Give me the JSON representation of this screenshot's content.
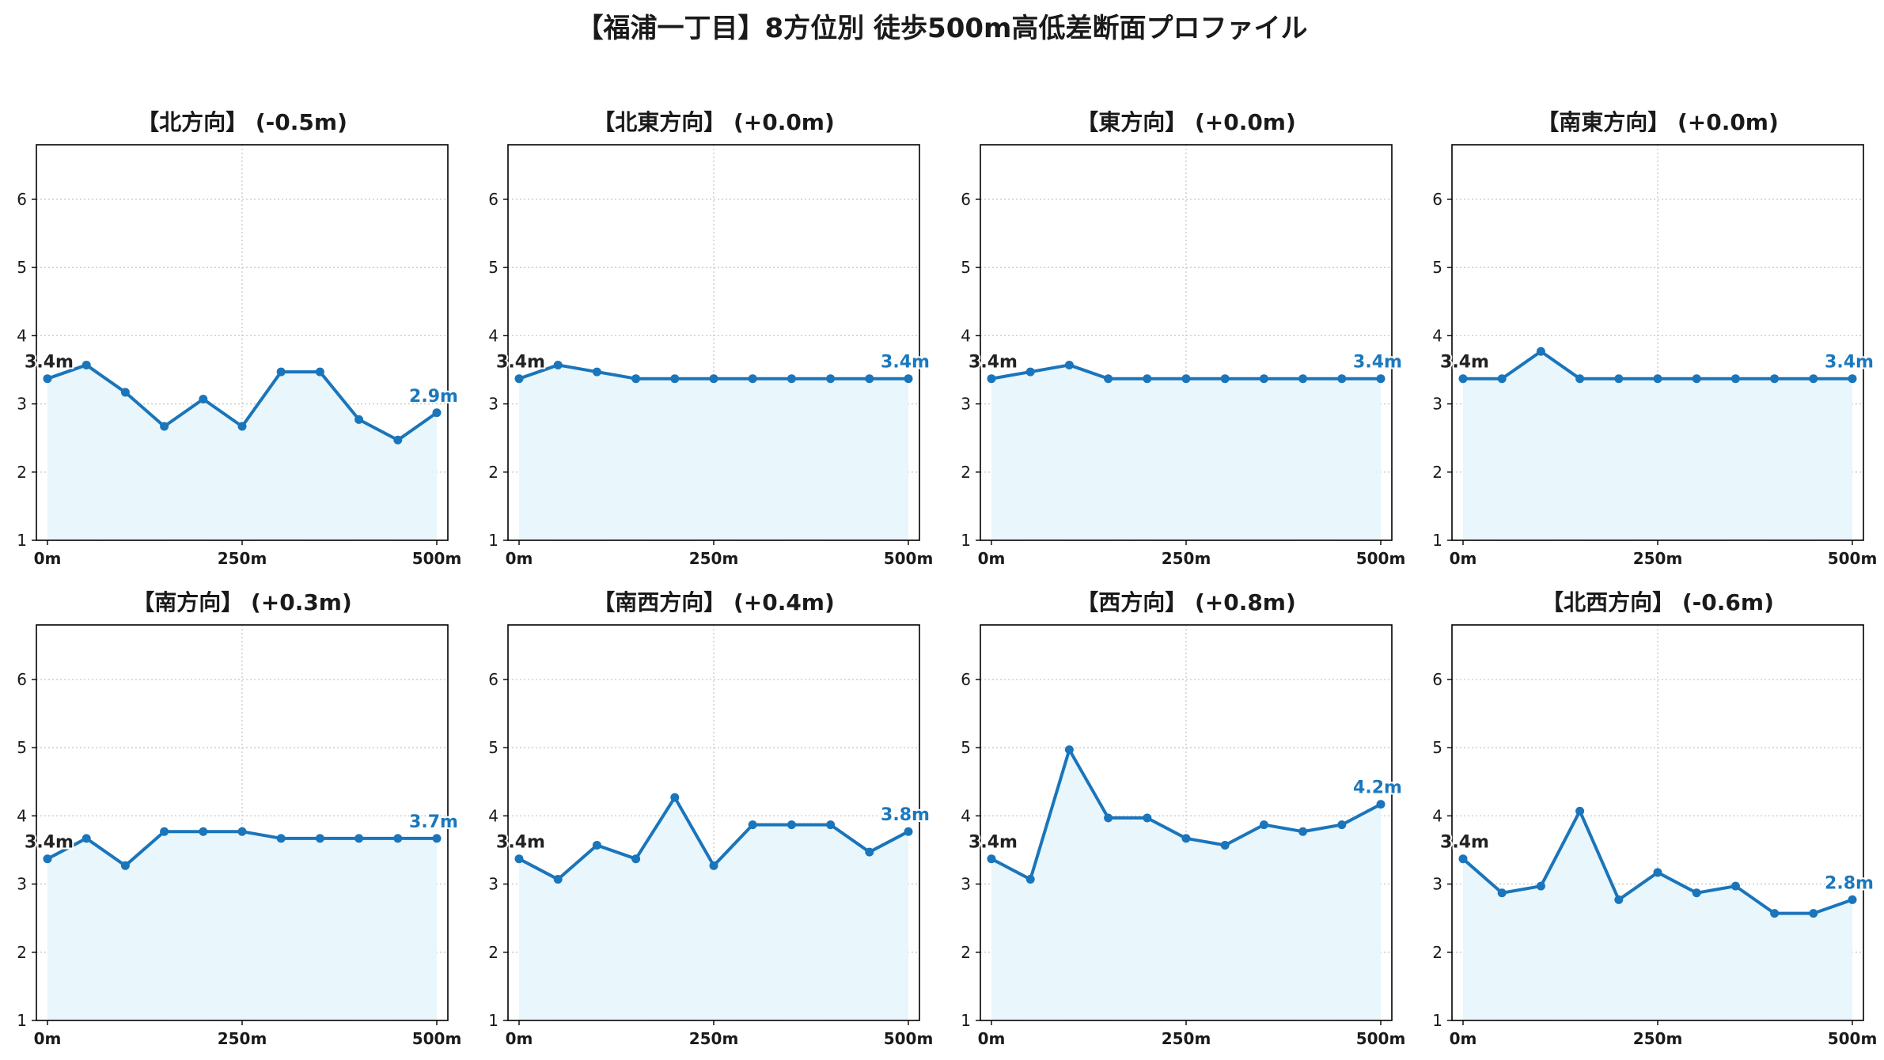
{
  "title": "【福浦一丁目】8方位別 徒歩500m高低差断面プロファイル",
  "colors": {
    "line": "#1a75bb",
    "fill": "#e9f6fb",
    "grid": "#c8c8c8",
    "end_label": "#1b78bd"
  },
  "chart_data": [
    {
      "type": "area",
      "title": "【北方向】 (-0.5m)",
      "x": [
        0,
        50,
        100,
        150,
        200,
        250,
        300,
        350,
        400,
        450,
        500
      ],
      "values": [
        3.37,
        3.57,
        3.17,
        2.67,
        3.07,
        2.67,
        3.47,
        3.47,
        2.77,
        2.47,
        2.87
      ],
      "start_label": "3.4m",
      "end_label": "2.9m",
      "xticks": [
        "0m",
        "250m",
        "500m"
      ],
      "yticks": [
        "1",
        "2",
        "3",
        "4",
        "5",
        "6"
      ],
      "xlim": [
        0,
        500
      ],
      "ylim": [
        1,
        6.8
      ],
      "grid": true
    },
    {
      "type": "area",
      "title": "【北東方向】 (+0.0m)",
      "x": [
        0,
        50,
        100,
        150,
        200,
        250,
        300,
        350,
        400,
        450,
        500
      ],
      "values": [
        3.37,
        3.57,
        3.47,
        3.37,
        3.37,
        3.37,
        3.37,
        3.37,
        3.37,
        3.37,
        3.37
      ],
      "start_label": "3.4m",
      "end_label": "3.4m",
      "xticks": [
        "0m",
        "250m",
        "500m"
      ],
      "yticks": [
        "1",
        "2",
        "3",
        "4",
        "5",
        "6"
      ],
      "xlim": [
        0,
        500
      ],
      "ylim": [
        1,
        6.8
      ],
      "grid": true
    },
    {
      "type": "area",
      "title": "【東方向】 (+0.0m)",
      "x": [
        0,
        50,
        100,
        150,
        200,
        250,
        300,
        350,
        400,
        450,
        500
      ],
      "values": [
        3.37,
        3.47,
        3.57,
        3.37,
        3.37,
        3.37,
        3.37,
        3.37,
        3.37,
        3.37,
        3.37
      ],
      "start_label": "3.4m",
      "end_label": "3.4m",
      "xticks": [
        "0m",
        "250m",
        "500m"
      ],
      "yticks": [
        "1",
        "2",
        "3",
        "4",
        "5",
        "6"
      ],
      "xlim": [
        0,
        500
      ],
      "ylim": [
        1,
        6.8
      ],
      "grid": true
    },
    {
      "type": "area",
      "title": "【南東方向】 (+0.0m)",
      "x": [
        0,
        50,
        100,
        150,
        200,
        250,
        300,
        350,
        400,
        450,
        500
      ],
      "values": [
        3.37,
        3.37,
        3.77,
        3.37,
        3.37,
        3.37,
        3.37,
        3.37,
        3.37,
        3.37,
        3.37
      ],
      "start_label": "3.4m",
      "end_label": "3.4m",
      "xticks": [
        "0m",
        "250m",
        "500m"
      ],
      "yticks": [
        "1",
        "2",
        "3",
        "4",
        "5",
        "6"
      ],
      "xlim": [
        0,
        500
      ],
      "ylim": [
        1,
        6.8
      ],
      "grid": true
    },
    {
      "type": "area",
      "title": "【南方向】 (+0.3m)",
      "x": [
        0,
        50,
        100,
        150,
        200,
        250,
        300,
        350,
        400,
        450,
        500
      ],
      "values": [
        3.37,
        3.67,
        3.27,
        3.77,
        3.77,
        3.77,
        3.67,
        3.67,
        3.67,
        3.67,
        3.67
      ],
      "start_label": "3.4m",
      "end_label": "3.7m",
      "xticks": [
        "0m",
        "250m",
        "500m"
      ],
      "yticks": [
        "1",
        "2",
        "3",
        "4",
        "5",
        "6"
      ],
      "xlim": [
        0,
        500
      ],
      "ylim": [
        1,
        6.8
      ],
      "grid": true
    },
    {
      "type": "area",
      "title": "【南西方向】 (+0.4m)",
      "x": [
        0,
        50,
        100,
        150,
        200,
        250,
        300,
        350,
        400,
        450,
        500
      ],
      "values": [
        3.37,
        3.07,
        3.57,
        3.37,
        4.27,
        3.27,
        3.87,
        3.87,
        3.87,
        3.47,
        3.77
      ],
      "start_label": "3.4m",
      "end_label": "3.8m",
      "xticks": [
        "0m",
        "250m",
        "500m"
      ],
      "yticks": [
        "1",
        "2",
        "3",
        "4",
        "5",
        "6"
      ],
      "xlim": [
        0,
        500
      ],
      "ylim": [
        1,
        6.8
      ],
      "grid": true
    },
    {
      "type": "area",
      "title": "【西方向】 (+0.8m)",
      "x": [
        0,
        50,
        100,
        150,
        200,
        250,
        300,
        350,
        400,
        450,
        500
      ],
      "values": [
        3.37,
        3.07,
        4.97,
        3.97,
        3.97,
        3.67,
        3.57,
        3.87,
        3.77,
        3.87,
        4.17
      ],
      "start_label": "3.4m",
      "end_label": "4.2m",
      "xticks": [
        "0m",
        "250m",
        "500m"
      ],
      "yticks": [
        "1",
        "2",
        "3",
        "4",
        "5",
        "6"
      ],
      "xlim": [
        0,
        500
      ],
      "ylim": [
        1,
        6.8
      ],
      "grid": true
    },
    {
      "type": "area",
      "title": "【北西方向】 (-0.6m)",
      "x": [
        0,
        50,
        100,
        150,
        200,
        250,
        300,
        350,
        400,
        450,
        500
      ],
      "values": [
        3.37,
        2.87,
        2.97,
        4.07,
        2.77,
        3.17,
        2.87,
        2.97,
        2.57,
        2.57,
        2.77
      ],
      "start_label": "3.4m",
      "end_label": "2.8m",
      "xticks": [
        "0m",
        "250m",
        "500m"
      ],
      "yticks": [
        "1",
        "2",
        "3",
        "4",
        "5",
        "6"
      ],
      "xlim": [
        0,
        500
      ],
      "ylim": [
        1,
        6.8
      ],
      "grid": true
    }
  ]
}
